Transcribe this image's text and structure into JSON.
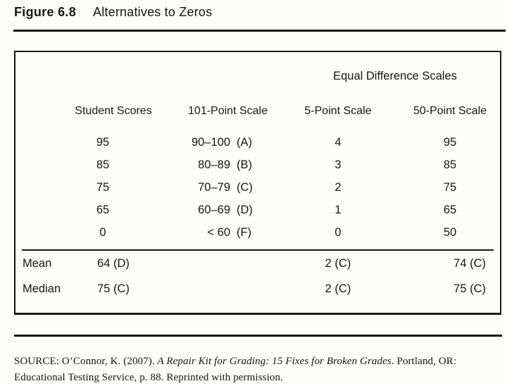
{
  "figure": {
    "label": "Figure 6.8",
    "title": "Alternatives to Zeros"
  },
  "table": {
    "span_header": "Equal Difference Scales",
    "columns": {
      "student": "Student Scores",
      "scale101": "101-Point Scale",
      "scale5": "5-Point Scale",
      "scale50": "50-Point Scale"
    },
    "rows": [
      {
        "student": "95",
        "range": "90–100",
        "grade": "(A)",
        "five": "4",
        "fifty": "95"
      },
      {
        "student": "85",
        "range": "80–89",
        "grade": "(B)",
        "five": "3",
        "fifty": "85"
      },
      {
        "student": "75",
        "range": "70–79",
        "grade": "(C)",
        "five": "2",
        "fifty": "75"
      },
      {
        "student": "65",
        "range": "60–69",
        "grade": "(D)",
        "five": "1",
        "fifty": "65"
      },
      {
        "student": "0",
        "range": "< 60",
        "grade": "(F)",
        "five": "0",
        "fifty": "50"
      }
    ],
    "summary": [
      {
        "label": "Mean",
        "student": "64 (D)",
        "five": "2 (C)",
        "fifty": "74 (C)"
      },
      {
        "label": "Median",
        "student": "75 (C)",
        "five": "2 (C)",
        "fifty": "75 (C)"
      }
    ]
  },
  "source": {
    "pre": "SOURCE: O’Connor, K. (2007). ",
    "italic": "A Repair Kit for Grading: 15 Fixes for Broken Grades",
    "post": ". Portland, OR: Educational Testing Service, p. 88. Reprinted with permission."
  },
  "colors": {
    "ink": "#161616",
    "paper": "#fdfdfb"
  }
}
